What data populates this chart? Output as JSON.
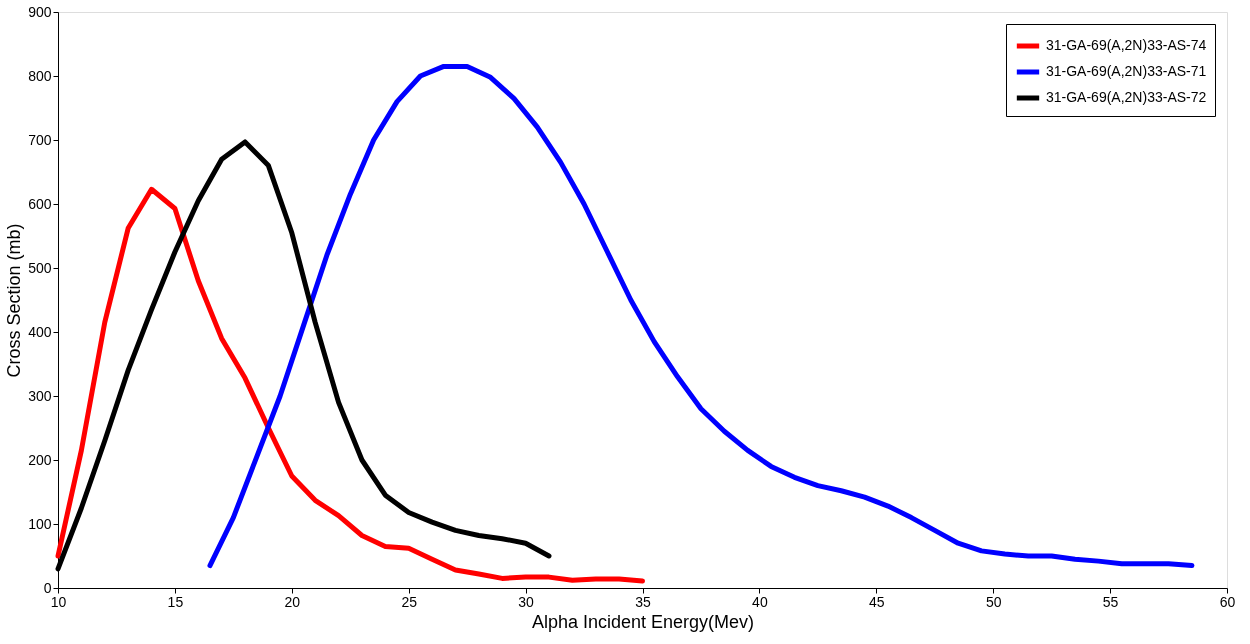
{
  "chart_data": {
    "type": "line",
    "xlabel": "Alpha Incident  Energy(Mev)",
    "ylabel": "Cross Section (mb)",
    "xlim": [
      10,
      60
    ],
    "xticks": [
      10,
      15,
      20,
      25,
      30,
      35,
      40,
      45,
      50,
      55,
      60
    ],
    "ylim": [
      0,
      900
    ],
    "yticks": [
      0,
      100,
      200,
      300,
      400,
      500,
      600,
      700,
      800,
      900
    ],
    "grid": false,
    "legend": "top right",
    "marker": "none",
    "line_style": "solid",
    "series": [
      {
        "name": "31-GA-69(A,2N)33-AS-74",
        "color": "#ff0000",
        "x": [
          10,
          11,
          12,
          13,
          14,
          15,
          16,
          17,
          18,
          19,
          20,
          21,
          22,
          23,
          24,
          25,
          26,
          27,
          28,
          29,
          30,
          31,
          32,
          33,
          34,
          35
        ],
        "values": [
          50,
          215,
          415,
          562,
          623,
          593,
          480,
          390,
          328,
          250,
          175,
          137,
          113,
          82,
          65,
          62,
          45,
          28,
          22,
          15,
          17,
          17,
          12,
          14,
          14,
          11
        ]
      },
      {
        "name": "31-GA-69(A,2N)33-AS-71",
        "color": "#0000ff",
        "x": [
          16.5,
          17.5,
          18.5,
          19.5,
          20.5,
          21.5,
          22.5,
          23.5,
          24.5,
          25.5,
          26.5,
          27.5,
          28.5,
          29.5,
          30.5,
          31.5,
          32.5,
          33.5,
          34.5,
          35.5,
          36.5,
          37.5,
          38.5,
          39.5,
          40.5,
          41.5,
          42.5,
          43.5,
          44.5,
          45.5,
          46.5,
          47.5,
          48.5,
          49.5,
          50.5,
          51.5,
          52.5,
          53.5,
          54.5,
          55.5,
          56.5,
          57.5,
          58.5
        ],
        "values": [
          35,
          110,
          205,
          300,
          410,
          520,
          615,
          700,
          760,
          800,
          815,
          815,
          798,
          765,
          720,
          665,
          600,
          525,
          450,
          385,
          330,
          280,
          245,
          215,
          190,
          173,
          160,
          152,
          142,
          128,
          110,
          90,
          70,
          58,
          53,
          50,
          50,
          45,
          42,
          38,
          38,
          38,
          35
        ]
      },
      {
        "name": "31-GA-69(A,2N)33-AS-72",
        "color": "#000000",
        "x": [
          10,
          11,
          12,
          13,
          14,
          15,
          16,
          17,
          18,
          19,
          20,
          21,
          22,
          23,
          24,
          25,
          26,
          27,
          28,
          29,
          30,
          31
        ],
        "values": [
          30,
          125,
          230,
          340,
          435,
          525,
          605,
          670,
          697,
          660,
          555,
          415,
          290,
          200,
          145,
          118,
          103,
          90,
          82,
          77,
          70,
          50
        ]
      }
    ]
  }
}
